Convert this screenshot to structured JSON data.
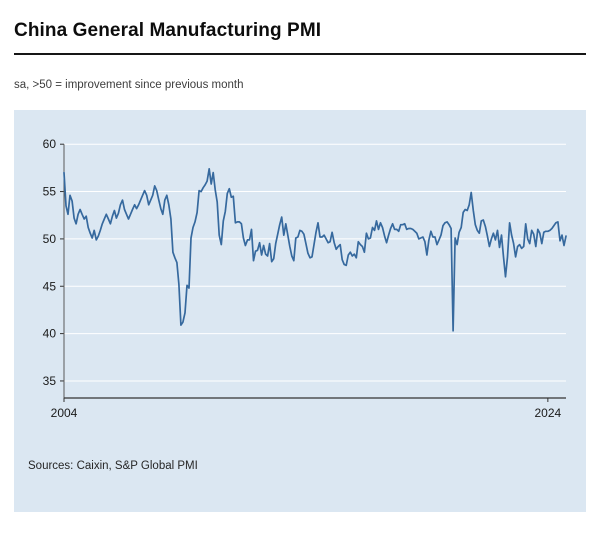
{
  "header": {
    "title": "China General Manufacturing PMI",
    "subtitle": "sa, >50 = improvement since previous month"
  },
  "footer": {
    "sources": "Sources: Caixin, S&P Global PMI"
  },
  "colors": {
    "panel_background": "#dbe7f2",
    "line": "#36699e",
    "grid": "#ffffff",
    "axis": "#333333",
    "title_rule": "#161616"
  },
  "chart_data": {
    "type": "line",
    "title": "China General Manufacturing PMI",
    "subtitle": "sa, >50 = improvement since previous month",
    "frequency": "monthly",
    "x_start_year": 2004,
    "x_end_year": 2024,
    "ylim": [
      33.2,
      61.5
    ],
    "yticks": [
      60,
      55,
      50,
      45,
      40,
      35
    ],
    "xticks": [
      {
        "label": "2004",
        "index": 0
      },
      {
        "label": "2024",
        "index": 240
      }
    ],
    "grid": "horizontal",
    "legend": "none",
    "sources": "Sources: Caixin, S&P Global PMI",
    "series": [
      {
        "name": "China General Manufacturing PMI (sa)",
        "color": "#36699e",
        "values": [
          57.0,
          53.5,
          52.6,
          54.6,
          54.0,
          52.2,
          51.6,
          52.6,
          53.1,
          52.6,
          52.1,
          52.4,
          51.2,
          50.6,
          50.1,
          50.9,
          49.9,
          50.3,
          50.9,
          51.6,
          52.1,
          52.6,
          52.1,
          51.6,
          52.4,
          53.0,
          52.2,
          52.7,
          53.6,
          54.1,
          53.1,
          52.6,
          52.1,
          52.6,
          53.1,
          53.6,
          53.2,
          53.6,
          54.1,
          54.6,
          55.1,
          54.6,
          53.6,
          54.1,
          54.6,
          55.6,
          55.1,
          54.1,
          53.2,
          52.6,
          54.1,
          54.6,
          53.6,
          52.1,
          48.6,
          48.0,
          47.5,
          45.2,
          40.9,
          41.2,
          42.2,
          45.1,
          44.8,
          50.1,
          51.2,
          51.8,
          52.8,
          55.1,
          55.0,
          55.4,
          55.7,
          56.1,
          57.4,
          55.8,
          57.0,
          55.2,
          53.9,
          50.4,
          49.4,
          51.9,
          52.9,
          54.8,
          55.3,
          54.4,
          54.5,
          51.7,
          51.8,
          51.8,
          51.6,
          50.1,
          49.3,
          49.9,
          49.9,
          51.0,
          47.7,
          48.7,
          48.8,
          49.6,
          48.3,
          49.3,
          48.4,
          48.2,
          49.5,
          47.6,
          47.9,
          49.5,
          50.5,
          51.5,
          52.3,
          50.4,
          51.6,
          50.4,
          49.2,
          48.2,
          47.7,
          50.1,
          50.2,
          50.9,
          50.8,
          50.5,
          49.5,
          48.5,
          48.0,
          48.1,
          49.4,
          50.7,
          51.7,
          50.2,
          50.2,
          50.4,
          50.0,
          49.6,
          49.7,
          50.7,
          49.6,
          48.9,
          49.2,
          49.4,
          47.8,
          47.3,
          47.2,
          48.3,
          48.6,
          48.2,
          48.4,
          48.0,
          49.7,
          49.4,
          49.2,
          48.6,
          50.6,
          50.0,
          50.1,
          51.2,
          50.9,
          51.9,
          51.0,
          51.7,
          51.2,
          50.3,
          49.6,
          50.4,
          51.1,
          51.6,
          51.0,
          51.0,
          50.8,
          51.5,
          51.5,
          51.6,
          51.0,
          51.1,
          51.1,
          51.0,
          50.8,
          50.6,
          50.0,
          50.1,
          50.2,
          49.7,
          48.3,
          49.9,
          50.8,
          50.2,
          50.2,
          49.4,
          49.9,
          50.4,
          51.4,
          51.7,
          51.8,
          51.5,
          51.1,
          40.3,
          50.1,
          49.4,
          50.7,
          51.2,
          52.8,
          53.1,
          53.0,
          53.6,
          54.9,
          53.0,
          51.5,
          50.9,
          50.6,
          51.9,
          52.0,
          51.3,
          50.3,
          49.2,
          50.0,
          50.6,
          49.9,
          50.9,
          49.1,
          50.4,
          48.1,
          46.0,
          48.1,
          51.7,
          50.4,
          49.5,
          48.1,
          49.2,
          49.4,
          49.0,
          49.2,
          51.6,
          50.0,
          49.5,
          50.9,
          50.5,
          49.2,
          51.0,
          50.6,
          49.5,
          50.7,
          50.8,
          50.8,
          50.9,
          51.1,
          51.4,
          51.7,
          51.8,
          49.8,
          50.4,
          49.3,
          50.3
        ]
      }
    ]
  }
}
